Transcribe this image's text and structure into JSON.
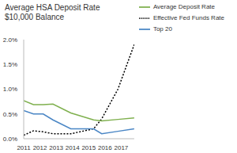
{
  "chart_data": {
    "type": "line",
    "title": "Average HSA Deposit Rate",
    "subtitle": "$10,000 Balance",
    "x": [
      2011,
      2011.6,
      2012.2,
      2012.8,
      2013.9,
      2015.3,
      2015.8,
      2016.8,
      2017.8
    ],
    "series": [
      {
        "name": "Effective Fed Funds Rate",
        "color": "#000000",
        "line_style": "dotted",
        "values": [
          0.07,
          0.16,
          0.14,
          0.1,
          0.1,
          0.2,
          0.4,
          1.0,
          1.9
        ]
      },
      {
        "name": "Average Deposit Rate",
        "color": "#7fb04e",
        "line_style": "solid",
        "values": [
          0.77,
          0.69,
          0.69,
          0.7,
          0.52,
          0.38,
          0.36,
          0.39,
          0.42
        ]
      },
      {
        "name": "Top 20",
        "color": "#4a86c5",
        "line_style": "solid",
        "values": [
          0.57,
          0.5,
          0.5,
          0.38,
          0.2,
          0.2,
          0.1,
          0.15,
          0.2
        ]
      }
    ],
    "xlim": [
      2011,
      2017.8
    ],
    "xticks": [
      2011,
      2012,
      2013,
      2014,
      2015,
      2016,
      2017
    ],
    "ylim": [
      0,
      2
    ],
    "yticks": [
      {
        "value": 0,
        "label": "0.0%"
      },
      {
        "value": 0.5,
        "label": "0.5%"
      },
      {
        "value": 1,
        "label": "1.0%"
      },
      {
        "value": 1.5,
        "label": "1.5%"
      },
      {
        "value": 2,
        "label": "2.0%"
      }
    ],
    "grid": false,
    "legend": "top-right"
  }
}
